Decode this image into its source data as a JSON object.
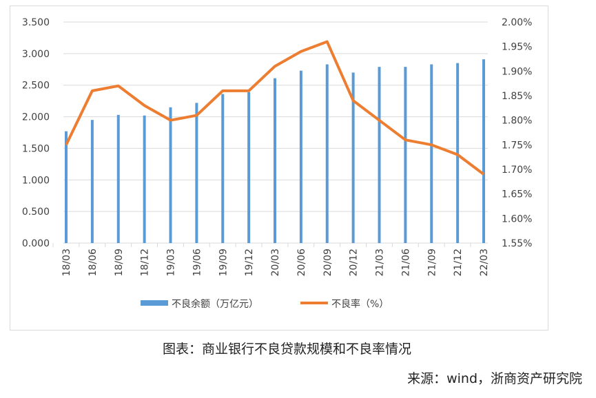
{
  "chart_data": {
    "type": "bar+line",
    "categories": [
      "18/03",
      "18/06",
      "18/09",
      "18/12",
      "19/03",
      "19/06",
      "19/09",
      "19/12",
      "20/03",
      "20/06",
      "20/09",
      "20/12",
      "21/03",
      "21/06",
      "21/09",
      "21/12",
      "22/03"
    ],
    "series": [
      {
        "name": "不良余额（万亿元）",
        "type": "bar",
        "axis": "left",
        "color": "#5B9BD5",
        "values": [
          1.77,
          1.95,
          2.03,
          2.02,
          2.15,
          2.22,
          2.36,
          2.39,
          2.61,
          2.73,
          2.83,
          2.7,
          2.79,
          2.79,
          2.83,
          2.85,
          2.91
        ]
      },
      {
        "name": "不良率（%）",
        "type": "line",
        "axis": "right",
        "color": "#ED7D31",
        "values": [
          1.75,
          1.86,
          1.87,
          1.83,
          1.8,
          1.81,
          1.86,
          1.86,
          1.91,
          1.94,
          1.96,
          1.84,
          1.8,
          1.76,
          1.75,
          1.73,
          1.69
        ]
      }
    ],
    "left_axis": {
      "ylim": [
        0,
        3.5
      ],
      "ticks": [
        "0.000",
        "0.500",
        "1.000",
        "1.500",
        "2.000",
        "2.500",
        "3.000",
        "3.500"
      ]
    },
    "right_axis": {
      "ylim": [
        1.55,
        2.0
      ],
      "ticks": [
        "1.55%",
        "1.60%",
        "1.65%",
        "1.70%",
        "1.75%",
        "1.80%",
        "1.85%",
        "1.90%",
        "1.95%",
        "2.00%"
      ]
    },
    "grid": true,
    "legend_position": "bottom"
  },
  "caption": "图表：商业银行不良贷款规模和不良率情况",
  "source": "来源：wind，浙商资产研究院"
}
